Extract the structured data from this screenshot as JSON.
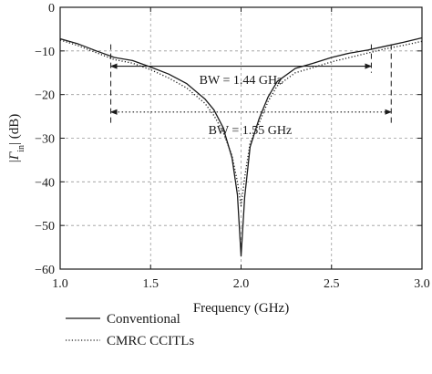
{
  "chart_data": {
    "type": "line",
    "title": "",
    "xlabel": "Frequency (GHz)",
    "ylabel_parts": [
      "|",
      "Γ",
      "in",
      "| (dB)"
    ],
    "xlim": [
      1.0,
      3.0
    ],
    "ylim": [
      -60,
      0
    ],
    "xticks": [
      1.0,
      1.5,
      2.0,
      2.5,
      3.0
    ],
    "xtick_labels": [
      "1.0",
      "1.5",
      "2.0",
      "2.5",
      "3.0"
    ],
    "yticks": [
      0,
      -10,
      -20,
      -30,
      -40,
      -50,
      -60
    ],
    "ytick_labels": [
      "0",
      "−10",
      "−20",
      "−30",
      "−40",
      "−50",
      "−60"
    ],
    "grid": true,
    "legend_position": "bottom-left, below plot",
    "series": [
      {
        "name": "Conventional",
        "style": "solid",
        "color": "#1a1a1a",
        "x": [
          1.0,
          1.1,
          1.2,
          1.3,
          1.4,
          1.5,
          1.6,
          1.7,
          1.8,
          1.85,
          1.9,
          1.95,
          1.98,
          2.0,
          2.02,
          2.05,
          2.1,
          2.15,
          2.2,
          2.3,
          2.4,
          2.5,
          2.6,
          2.7,
          2.8,
          2.9,
          3.0
        ],
        "y": [
          -7.2,
          -8.4,
          -10.0,
          -11.5,
          -12.2,
          -13.7,
          -15.3,
          -17.5,
          -21.0,
          -23.5,
          -27.5,
          -34.5,
          -43.0,
          -57.0,
          -43.5,
          -32.0,
          -25.5,
          -20.5,
          -17.0,
          -14.0,
          -12.8,
          -11.5,
          -10.5,
          -9.8,
          -8.9,
          -8.0,
          -7.0
        ]
      },
      {
        "name": "CMRC CCITLs",
        "style": "dotted",
        "color": "#1a1a1a",
        "x": [
          1.0,
          1.1,
          1.2,
          1.3,
          1.4,
          1.5,
          1.6,
          1.7,
          1.8,
          1.85,
          1.9,
          1.95,
          1.98,
          2.0,
          2.02,
          2.05,
          2.1,
          2.15,
          2.2,
          2.3,
          2.4,
          2.5,
          2.6,
          2.7,
          2.8,
          2.9,
          3.0
        ],
        "y": [
          -7.5,
          -8.8,
          -10.4,
          -12.0,
          -12.8,
          -14.3,
          -16.2,
          -18.5,
          -22.0,
          -24.8,
          -28.5,
          -34.0,
          -40.0,
          -45.5,
          -39.0,
          -31.0,
          -26.5,
          -21.5,
          -18.0,
          -15.0,
          -13.8,
          -12.5,
          -11.5,
          -10.5,
          -9.5,
          -8.7,
          -7.8
        ]
      }
    ],
    "annotations": [
      {
        "text": "BW = 1.44 GHz",
        "x_start": 1.28,
        "x_end": 2.72,
        "level": -13.5,
        "text_x": 2.0,
        "text_y": -16.5,
        "line_style": "solid"
      },
      {
        "text": "BW = 1.55 GHz",
        "x_start": 1.28,
        "x_end": 2.83,
        "level": -24.0,
        "text_x": 2.05,
        "text_y": -28.0,
        "line_style": "dotted"
      }
    ],
    "guides": [
      {
        "x": 1.28,
        "y_top": -8.5,
        "y_bottom": -26.5
      },
      {
        "x": 2.72,
        "y_top": -8.5,
        "y_bottom": -15.0
      },
      {
        "x": 2.83,
        "y_top": -8.5,
        "y_bottom": -26.5
      }
    ]
  }
}
